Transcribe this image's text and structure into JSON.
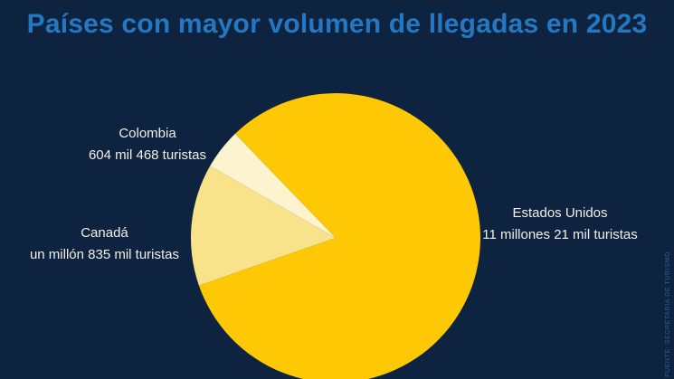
{
  "title": "Países con mayor volumen de llegadas en 2023",
  "colors": {
    "background": "#0d2340",
    "title_text": "#2478c2",
    "label_text": "#f3efe6",
    "credit_text": "#35659c"
  },
  "chart_data": {
    "type": "pie",
    "title": "Países con mayor volumen de llegadas en 2023",
    "unit": "turistas",
    "start_angle_deg": 134,
    "direction": "ccw",
    "legend_position": "labels-beside-slices",
    "slices": [
      {
        "name": "Colombia",
        "value": 604468,
        "value_label": "604 mil 468 turistas",
        "color": "#fcf4cf"
      },
      {
        "name": "Canadá",
        "value": 1835000,
        "value_label": "un millón 835 mil turistas",
        "color": "#f8e38a"
      },
      {
        "name": "Estados Unidos",
        "value": 11021000,
        "value_label": "11 millones 21 mil turistas",
        "color": "#ffc805"
      }
    ]
  },
  "credit": "FUENTE: SECRETARÍA DE TURISMO"
}
